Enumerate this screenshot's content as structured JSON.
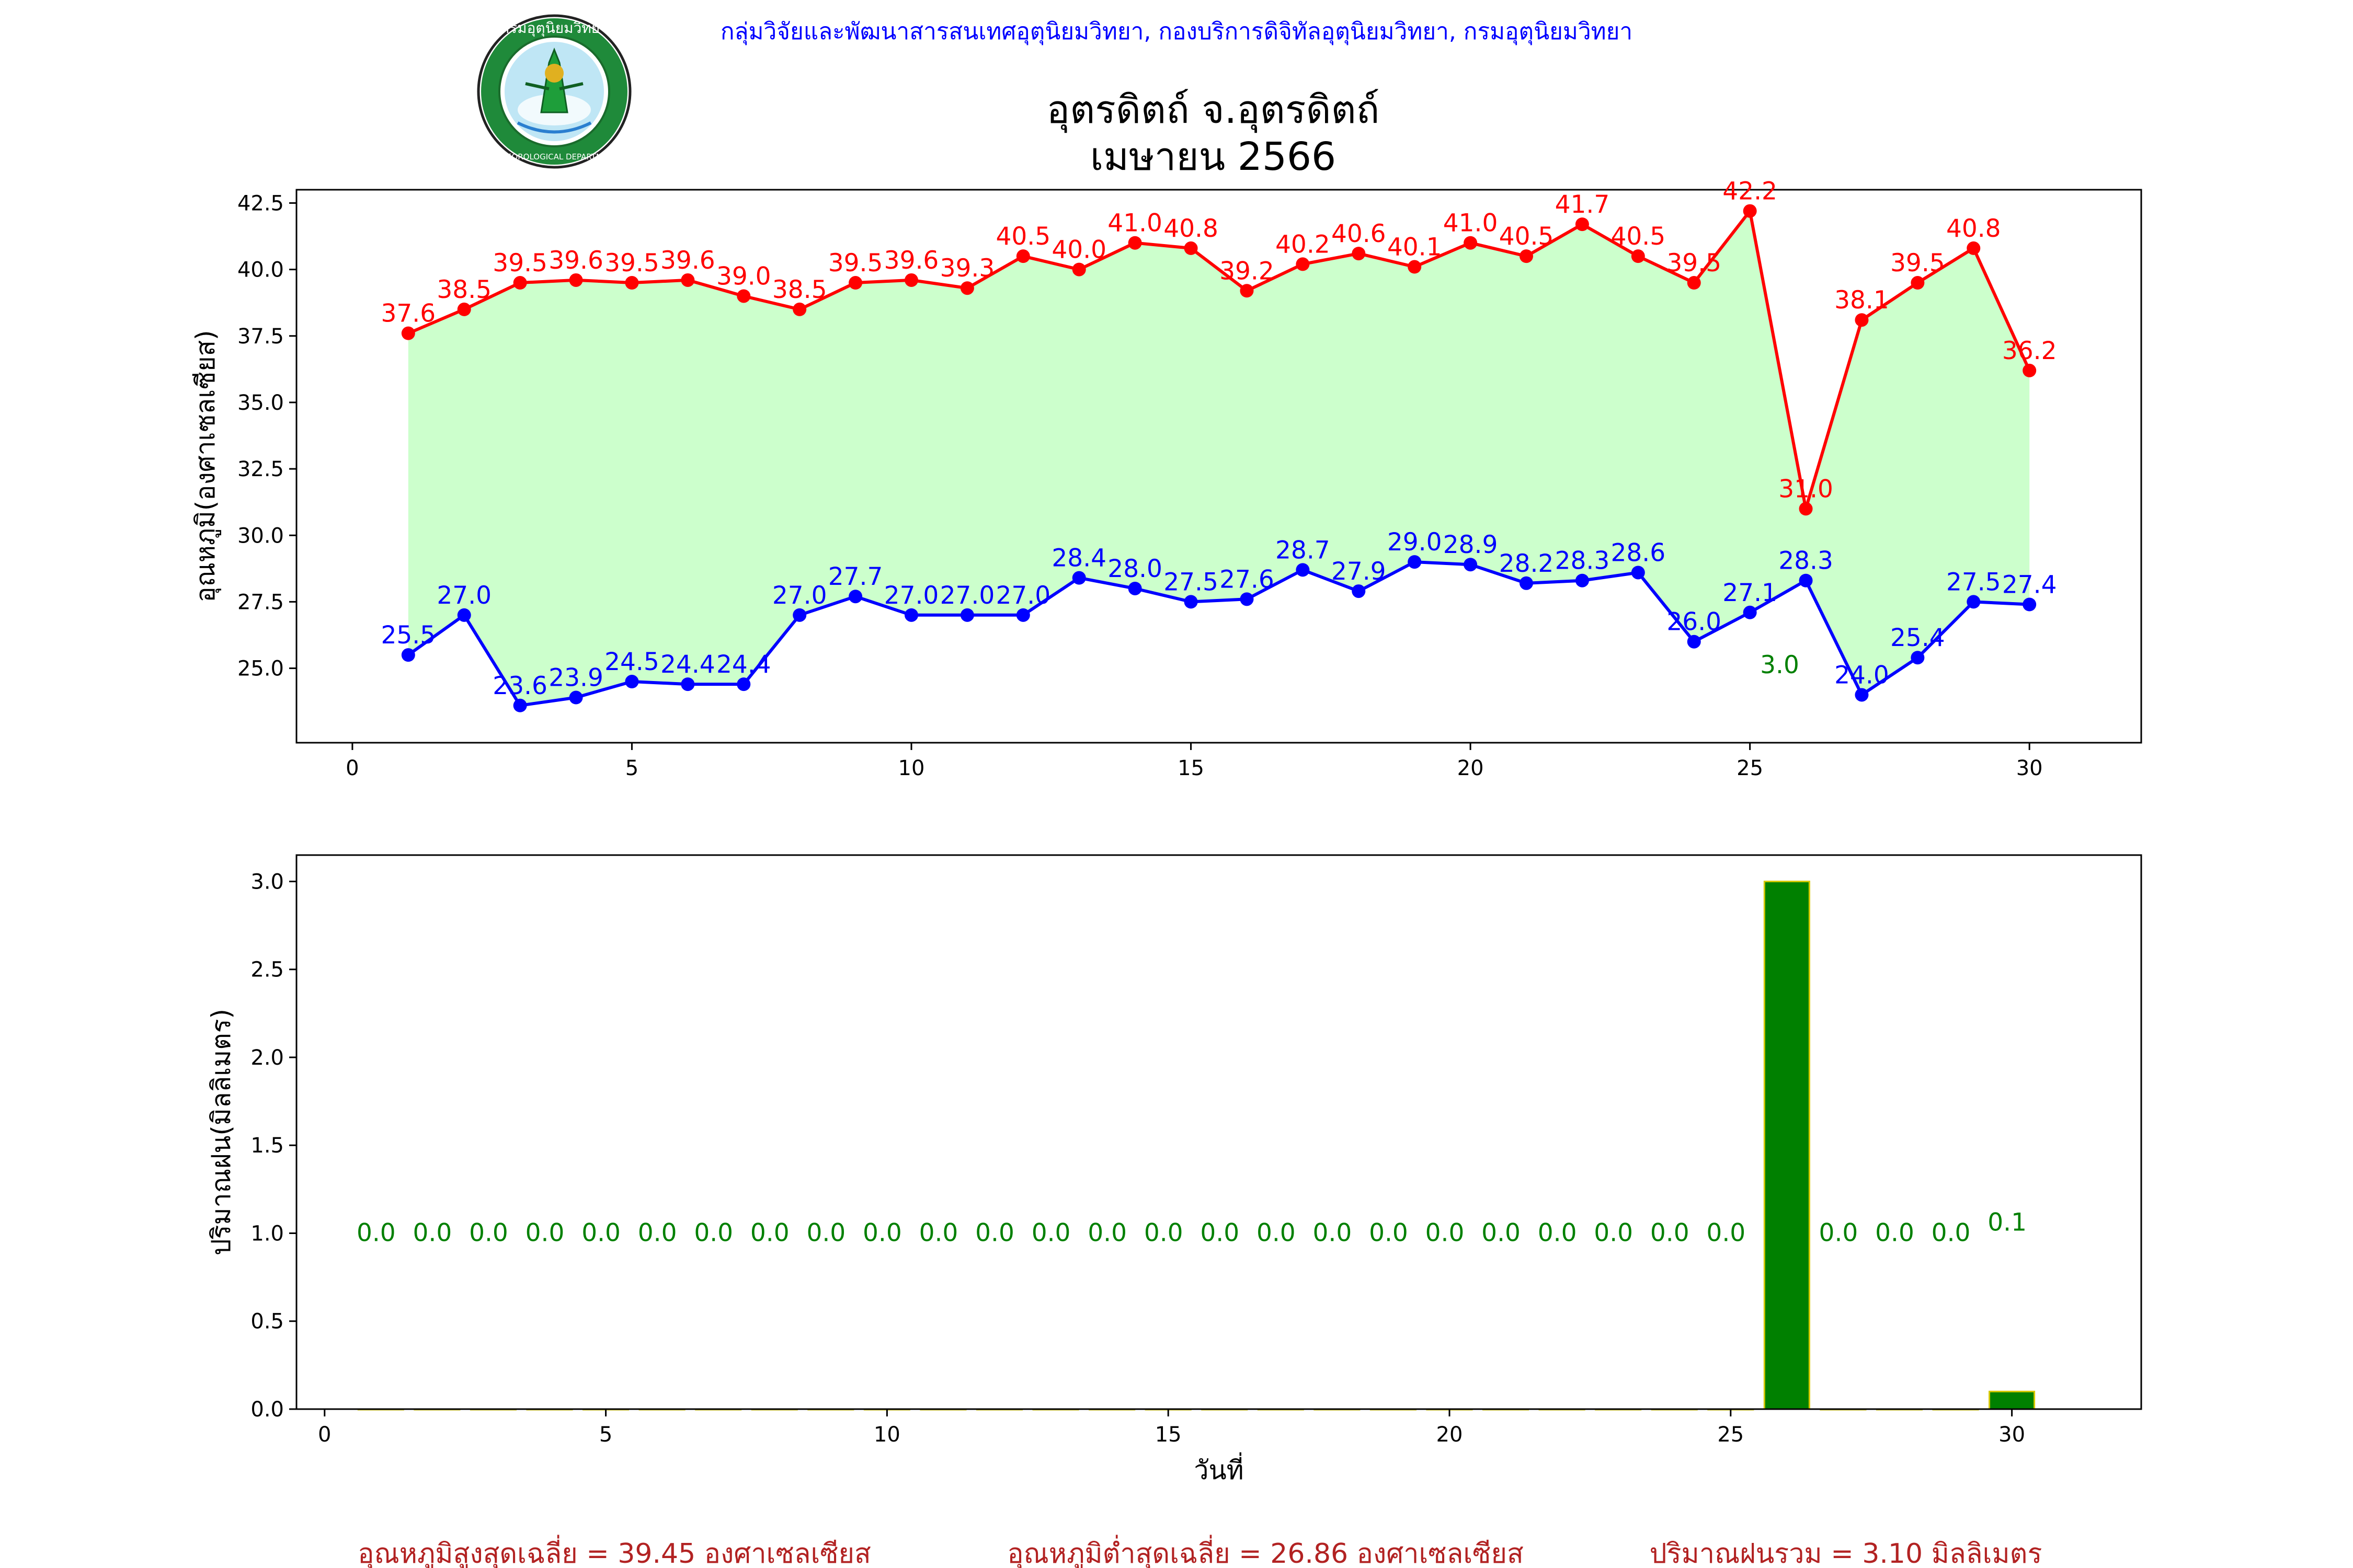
{
  "header": {
    "agency_line": "กลุ่มวิจัยและพัฒนาสารสนเทศอุตุนิยมวิทยา, กองบริการดิจิทัลอุตุนิยมวิทยา, กรมอุตุนิยมวิทยา",
    "station": "อุตรดิตถ์ จ.อุตรดิตถ์",
    "month_year": "เมษายน 2566",
    "logo_text_top": "กรมอุตุนิยมวิทยา",
    "logo_text_bottom": "METEOROLOGICAL DEPARTMENT"
  },
  "colors": {
    "max": "#ff0000",
    "min": "#0000ff",
    "fill": "#ccffcc",
    "rain_bar": "#008000",
    "rain_edge": "#d4c800",
    "rain_text": "#008000",
    "summary": "#b22222",
    "agency": "#0000ff"
  },
  "chart_data": [
    {
      "type": "line",
      "ylabel": "อุณหภูมิ(องศาเซลเซียส)",
      "x": [
        1,
        2,
        3,
        4,
        5,
        6,
        7,
        8,
        9,
        10,
        11,
        12,
        13,
        14,
        15,
        16,
        17,
        18,
        19,
        20,
        21,
        22,
        23,
        24,
        25,
        26,
        27,
        28,
        29,
        30
      ],
      "xlim": [
        -1,
        32
      ],
      "ylim": [
        22.2,
        43.0
      ],
      "xticks": [
        0,
        5,
        10,
        15,
        20,
        25,
        30
      ],
      "yticks": [
        25.0,
        27.5,
        30.0,
        32.5,
        35.0,
        37.5,
        40.0,
        42.5
      ],
      "series": [
        {
          "key": "max",
          "values": [
            37.6,
            38.5,
            39.5,
            39.6,
            39.5,
            39.6,
            39.0,
            38.5,
            39.5,
            39.6,
            39.3,
            40.5,
            40.0,
            41.0,
            40.8,
            39.2,
            40.2,
            40.6,
            40.1,
            41.0,
            40.5,
            41.7,
            40.5,
            39.5,
            42.2,
            31.0,
            38.1,
            39.5,
            40.8,
            36.2
          ]
        },
        {
          "key": "min",
          "values": [
            25.5,
            27.0,
            23.6,
            23.9,
            24.5,
            24.4,
            24.4,
            27.0,
            27.7,
            27.0,
            27.0,
            27.0,
            28.4,
            28.0,
            27.5,
            27.6,
            28.7,
            27.9,
            29.0,
            28.9,
            28.2,
            28.3,
            28.6,
            26.0,
            27.1,
            28.3,
            24.0,
            25.4,
            27.5,
            27.4
          ]
        }
      ],
      "annotations": [
        {
          "x": 26,
          "y": 25.5,
          "text": "3.0"
        }
      ]
    },
    {
      "type": "bar",
      "xlabel": "วันที่",
      "ylabel": "ปริมาณฝน(มิลลิเมตร)",
      "x": [
        1,
        2,
        3,
        4,
        5,
        6,
        7,
        8,
        9,
        10,
        11,
        12,
        13,
        14,
        15,
        16,
        17,
        18,
        19,
        20,
        21,
        22,
        23,
        24,
        25,
        26,
        27,
        28,
        29,
        30
      ],
      "values": [
        0.0,
        0.0,
        0.0,
        0.0,
        0.0,
        0.0,
        0.0,
        0.0,
        0.0,
        0.0,
        0.0,
        0.0,
        0.0,
        0.0,
        0.0,
        0.0,
        0.0,
        0.0,
        0.0,
        0.0,
        0.0,
        0.0,
        0.0,
        0.0,
        0.0,
        3.0,
        0.0,
        0.0,
        0.0,
        0.1
      ],
      "labels": [
        "0.0",
        "0.0",
        "0.0",
        "0.0",
        "0.0",
        "0.0",
        "0.0",
        "0.0",
        "0.0",
        "0.0",
        "0.0",
        "0.0",
        "0.0",
        "0.0",
        "0.0",
        "0.0",
        "0.0",
        "0.0",
        "0.0",
        "0.0",
        "0.0",
        "0.0",
        "0.0",
        "0.0",
        "0.0",
        "",
        "0.0",
        "0.0",
        "0.0",
        "0.1"
      ],
      "xlim": [
        -0.5,
        32.3
      ],
      "ylim": [
        0,
        3.15
      ],
      "xticks": [
        0,
        5,
        10,
        15,
        20,
        25,
        30
      ],
      "yticks": [
        0.0,
        0.5,
        1.0,
        1.5,
        2.0,
        2.5,
        3.0
      ],
      "grid": false
    }
  ],
  "summary": {
    "avg_max": "อุณหภูมิสูงสุดเฉลี่ย = 39.45 องศาเซลเซียส",
    "avg_min": "อุณหภูมิต่ำสุดเฉลี่ย = 26.86 องศาเซลเซียส",
    "total_rain": "ปริมาณฝนรวม = 3.10 มิลลิเมตร"
  }
}
